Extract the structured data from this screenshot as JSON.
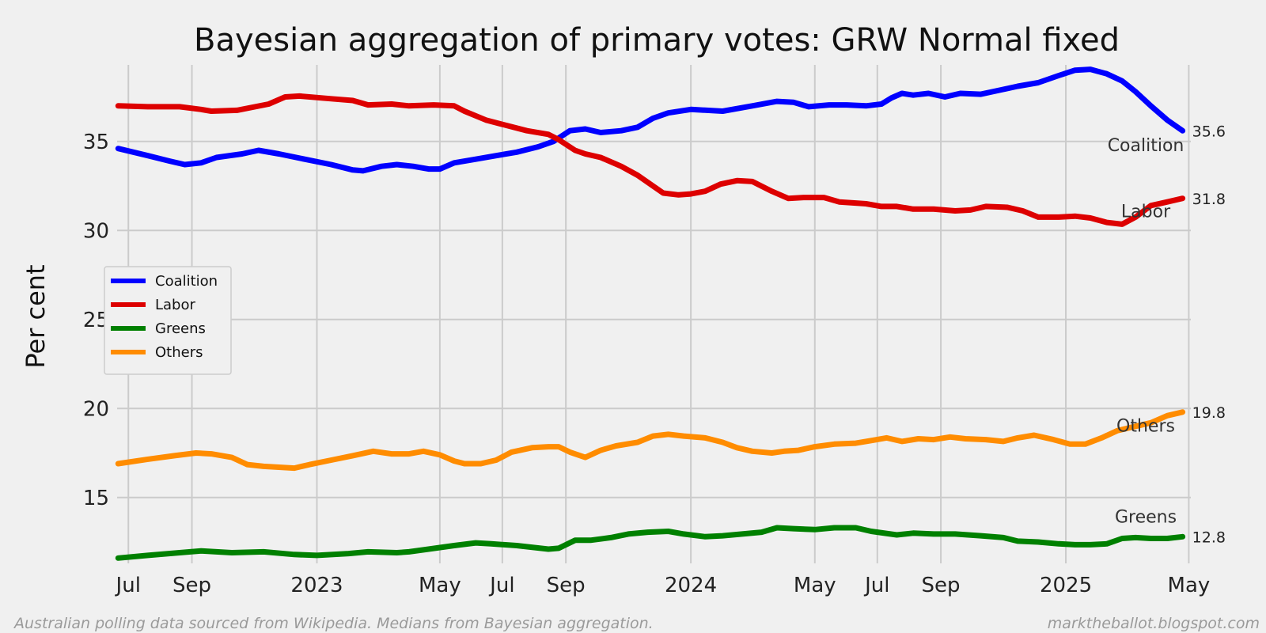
{
  "chart_data": {
    "type": "line",
    "title": "Bayesian aggregation of primary votes: GRW Normal fixed",
    "ylabel": "Per cent",
    "xlabel": "",
    "xlim": [
      "2022-06-20",
      "2025-05-03"
    ],
    "ylim": [
      11.3,
      39.3
    ],
    "x_ticks": [
      {
        "date": "2022-07-01",
        "label": "Jul"
      },
      {
        "date": "2022-09-01",
        "label": "Sep"
      },
      {
        "date": "2023-01-01",
        "label": "2023"
      },
      {
        "date": "2023-05-01",
        "label": "May"
      },
      {
        "date": "2023-07-01",
        "label": "Jul"
      },
      {
        "date": "2023-09-01",
        "label": "Sep"
      },
      {
        "date": "2024-01-01",
        "label": "2024"
      },
      {
        "date": "2024-05-01",
        "label": "May"
      },
      {
        "date": "2024-07-01",
        "label": "Jul"
      },
      {
        "date": "2024-09-01",
        "label": "Sep"
      },
      {
        "date": "2025-01-01",
        "label": "2025"
      },
      {
        "date": "2025-05-01",
        "label": "May"
      }
    ],
    "y_ticks": [
      15,
      20,
      25,
      30,
      35
    ],
    "grid": true,
    "legend_position": "center-left",
    "series": [
      {
        "name": "Coalition",
        "color": "#0000ff",
        "end_label": "35.6",
        "points": [
          [
            "2022-06-21",
            34.6
          ],
          [
            "2022-07-20",
            34.2
          ],
          [
            "2022-08-10",
            33.9
          ],
          [
            "2022-08-25",
            33.7
          ],
          [
            "2022-09-10",
            33.8
          ],
          [
            "2022-09-25",
            34.1
          ],
          [
            "2022-10-20",
            34.3
          ],
          [
            "2022-11-05",
            34.5
          ],
          [
            "2022-11-25",
            34.3
          ],
          [
            "2022-12-20",
            34.0
          ],
          [
            "2023-01-15",
            33.7
          ],
          [
            "2023-02-05",
            33.4
          ],
          [
            "2023-02-15",
            33.35
          ],
          [
            "2023-03-05",
            33.6
          ],
          [
            "2023-03-20",
            33.7
          ],
          [
            "2023-04-05",
            33.6
          ],
          [
            "2023-04-20",
            33.45
          ],
          [
            "2023-05-01",
            33.45
          ],
          [
            "2023-05-15",
            33.8
          ],
          [
            "2023-06-05",
            34.0
          ],
          [
            "2023-06-25",
            34.2
          ],
          [
            "2023-07-15",
            34.4
          ],
          [
            "2023-08-05",
            34.7
          ],
          [
            "2023-08-20",
            35.0
          ],
          [
            "2023-09-05",
            35.6
          ],
          [
            "2023-09-20",
            35.7
          ],
          [
            "2023-10-05",
            35.5
          ],
          [
            "2023-10-25",
            35.6
          ],
          [
            "2023-11-10",
            35.8
          ],
          [
            "2023-11-25",
            36.3
          ],
          [
            "2023-12-10",
            36.6
          ],
          [
            "2024-01-01",
            36.8
          ],
          [
            "2024-02-01",
            36.7
          ],
          [
            "2024-03-01",
            37.0
          ],
          [
            "2024-03-25",
            37.25
          ],
          [
            "2024-04-10",
            37.2
          ],
          [
            "2024-04-25",
            36.95
          ],
          [
            "2024-05-15",
            37.05
          ],
          [
            "2024-06-01",
            37.05
          ],
          [
            "2024-06-20",
            37.0
          ],
          [
            "2024-07-05",
            37.1
          ],
          [
            "2024-07-15",
            37.45
          ],
          [
            "2024-07-25",
            37.7
          ],
          [
            "2024-08-05",
            37.6
          ],
          [
            "2024-08-20",
            37.7
          ],
          [
            "2024-09-05",
            37.5
          ],
          [
            "2024-09-20",
            37.7
          ],
          [
            "2024-10-10",
            37.65
          ],
          [
            "2024-10-30",
            37.9
          ],
          [
            "2024-11-15",
            38.1
          ],
          [
            "2024-12-05",
            38.3
          ],
          [
            "2024-12-25",
            38.7
          ],
          [
            "2025-01-10",
            39.0
          ],
          [
            "2025-01-25",
            39.05
          ],
          [
            "2025-02-10",
            38.8
          ],
          [
            "2025-02-25",
            38.4
          ],
          [
            "2025-03-10",
            37.8
          ],
          [
            "2025-03-25",
            37.0
          ],
          [
            "2025-04-10",
            36.2
          ],
          [
            "2025-04-25",
            35.6
          ]
        ]
      },
      {
        "name": "Labor",
        "color": "#dd0000",
        "end_label": "31.8",
        "points": [
          [
            "2022-06-21",
            37.0
          ],
          [
            "2022-07-20",
            36.95
          ],
          [
            "2022-08-20",
            36.95
          ],
          [
            "2022-09-10",
            36.8
          ],
          [
            "2022-09-20",
            36.7
          ],
          [
            "2022-10-15",
            36.75
          ],
          [
            "2022-11-15",
            37.1
          ],
          [
            "2022-12-01",
            37.5
          ],
          [
            "2022-12-15",
            37.55
          ],
          [
            "2023-01-15",
            37.4
          ],
          [
            "2023-02-05",
            37.3
          ],
          [
            "2023-02-20",
            37.05
          ],
          [
            "2023-03-15",
            37.1
          ],
          [
            "2023-04-01",
            37.0
          ],
          [
            "2023-04-25",
            37.05
          ],
          [
            "2023-05-15",
            37.0
          ],
          [
            "2023-05-25",
            36.7
          ],
          [
            "2023-06-15",
            36.2
          ],
          [
            "2023-07-05",
            35.9
          ],
          [
            "2023-07-25",
            35.6
          ],
          [
            "2023-08-15",
            35.4
          ],
          [
            "2023-08-25",
            35.1
          ],
          [
            "2023-09-10",
            34.5
          ],
          [
            "2023-09-20",
            34.3
          ],
          [
            "2023-10-05",
            34.1
          ],
          [
            "2023-10-25",
            33.6
          ],
          [
            "2023-11-10",
            33.1
          ],
          [
            "2023-11-25",
            32.5
          ],
          [
            "2023-12-05",
            32.1
          ],
          [
            "2023-12-20",
            32.0
          ],
          [
            "2024-01-01",
            32.05
          ],
          [
            "2024-01-15",
            32.2
          ],
          [
            "2024-01-30",
            32.6
          ],
          [
            "2024-02-15",
            32.8
          ],
          [
            "2024-03-01",
            32.75
          ],
          [
            "2024-03-20",
            32.2
          ],
          [
            "2024-04-05",
            31.8
          ],
          [
            "2024-04-20",
            31.85
          ],
          [
            "2024-05-10",
            31.85
          ],
          [
            "2024-05-25",
            31.6
          ],
          [
            "2024-06-20",
            31.5
          ],
          [
            "2024-07-05",
            31.35
          ],
          [
            "2024-07-20",
            31.35
          ],
          [
            "2024-08-05",
            31.2
          ],
          [
            "2024-08-25",
            31.2
          ],
          [
            "2024-09-15",
            31.1
          ],
          [
            "2024-09-30",
            31.15
          ],
          [
            "2024-10-15",
            31.35
          ],
          [
            "2024-11-05",
            31.3
          ],
          [
            "2024-11-20",
            31.1
          ],
          [
            "2024-12-05",
            30.75
          ],
          [
            "2024-12-25",
            30.75
          ],
          [
            "2025-01-10",
            30.8
          ],
          [
            "2025-01-25",
            30.7
          ],
          [
            "2025-02-10",
            30.45
          ],
          [
            "2025-02-25",
            30.35
          ],
          [
            "2025-03-10",
            30.75
          ],
          [
            "2025-03-25",
            31.4
          ],
          [
            "2025-04-10",
            31.6
          ],
          [
            "2025-04-25",
            31.8
          ]
        ]
      },
      {
        "name": "Greens",
        "color": "#008000",
        "end_label": "12.8",
        "points": [
          [
            "2022-06-21",
            11.6
          ],
          [
            "2022-07-20",
            11.75
          ],
          [
            "2022-08-20",
            11.9
          ],
          [
            "2022-09-10",
            12.0
          ],
          [
            "2022-10-10",
            11.9
          ],
          [
            "2022-11-10",
            11.95
          ],
          [
            "2022-12-10",
            11.8
          ],
          [
            "2023-01-01",
            11.75
          ],
          [
            "2023-02-01",
            11.85
          ],
          [
            "2023-02-20",
            11.95
          ],
          [
            "2023-03-20",
            11.9
          ],
          [
            "2023-04-01",
            11.95
          ],
          [
            "2023-04-20",
            12.1
          ],
          [
            "2023-05-15",
            12.3
          ],
          [
            "2023-06-05",
            12.45
          ],
          [
            "2023-06-20",
            12.4
          ],
          [
            "2023-07-15",
            12.3
          ],
          [
            "2023-08-15",
            12.1
          ],
          [
            "2023-08-25",
            12.15
          ],
          [
            "2023-09-10",
            12.6
          ],
          [
            "2023-09-25",
            12.6
          ],
          [
            "2023-10-15",
            12.75
          ],
          [
            "2023-11-01",
            12.95
          ],
          [
            "2023-11-20",
            13.05
          ],
          [
            "2023-12-10",
            13.1
          ],
          [
            "2023-12-25",
            12.95
          ],
          [
            "2024-01-15",
            12.8
          ],
          [
            "2024-02-01",
            12.85
          ],
          [
            "2024-02-20",
            12.95
          ],
          [
            "2024-03-10",
            13.05
          ],
          [
            "2024-03-25",
            13.3
          ],
          [
            "2024-04-10",
            13.25
          ],
          [
            "2024-05-01",
            13.2
          ],
          [
            "2024-05-20",
            13.3
          ],
          [
            "2024-06-10",
            13.3
          ],
          [
            "2024-06-25",
            13.1
          ],
          [
            "2024-07-20",
            12.9
          ],
          [
            "2024-08-05",
            13.0
          ],
          [
            "2024-08-25",
            12.95
          ],
          [
            "2024-09-15",
            12.95
          ],
          [
            "2024-10-10",
            12.85
          ],
          [
            "2024-11-01",
            12.75
          ],
          [
            "2024-11-15",
            12.55
          ],
          [
            "2024-12-05",
            12.5
          ],
          [
            "2024-12-25",
            12.4
          ],
          [
            "2025-01-10",
            12.35
          ],
          [
            "2025-01-25",
            12.35
          ],
          [
            "2025-02-10",
            12.4
          ],
          [
            "2025-02-25",
            12.7
          ],
          [
            "2025-03-10",
            12.75
          ],
          [
            "2025-03-25",
            12.7
          ],
          [
            "2025-04-10",
            12.7
          ],
          [
            "2025-04-25",
            12.8
          ]
        ]
      },
      {
        "name": "Others",
        "color": "#ff8c00",
        "end_label": "19.8",
        "points": [
          [
            "2022-06-21",
            16.9
          ],
          [
            "2022-07-20",
            17.15
          ],
          [
            "2022-08-15",
            17.35
          ],
          [
            "2022-09-05",
            17.5
          ],
          [
            "2022-09-20",
            17.45
          ],
          [
            "2022-10-10",
            17.25
          ],
          [
            "2022-10-25",
            16.85
          ],
          [
            "2022-11-10",
            16.75
          ],
          [
            "2022-11-25",
            16.7
          ],
          [
            "2022-12-10",
            16.65
          ],
          [
            "2022-12-25",
            16.85
          ],
          [
            "2023-01-15",
            17.1
          ],
          [
            "2023-02-05",
            17.35
          ],
          [
            "2023-02-25",
            17.6
          ],
          [
            "2023-03-15",
            17.45
          ],
          [
            "2023-04-01",
            17.45
          ],
          [
            "2023-04-15",
            17.6
          ],
          [
            "2023-05-01",
            17.4
          ],
          [
            "2023-05-15",
            17.05
          ],
          [
            "2023-05-25",
            16.9
          ],
          [
            "2023-06-10",
            16.9
          ],
          [
            "2023-06-25",
            17.1
          ],
          [
            "2023-07-10",
            17.55
          ],
          [
            "2023-07-30",
            17.8
          ],
          [
            "2023-08-15",
            17.85
          ],
          [
            "2023-08-25",
            17.85
          ],
          [
            "2023-09-05",
            17.55
          ],
          [
            "2023-09-20",
            17.25
          ],
          [
            "2023-10-05",
            17.65
          ],
          [
            "2023-10-20",
            17.9
          ],
          [
            "2023-11-10",
            18.1
          ],
          [
            "2023-11-25",
            18.45
          ],
          [
            "2023-12-10",
            18.55
          ],
          [
            "2023-12-25",
            18.45
          ],
          [
            "2024-01-15",
            18.35
          ],
          [
            "2024-02-01",
            18.1
          ],
          [
            "2024-02-15",
            17.8
          ],
          [
            "2024-03-01",
            17.6
          ],
          [
            "2024-03-20",
            17.5
          ],
          [
            "2024-04-01",
            17.6
          ],
          [
            "2024-04-15",
            17.65
          ],
          [
            "2024-05-01",
            17.85
          ],
          [
            "2024-05-20",
            18.0
          ],
          [
            "2024-06-10",
            18.05
          ],
          [
            "2024-06-25",
            18.2
          ],
          [
            "2024-07-10",
            18.35
          ],
          [
            "2024-07-25",
            18.15
          ],
          [
            "2024-08-10",
            18.3
          ],
          [
            "2024-08-25",
            18.25
          ],
          [
            "2024-09-10",
            18.4
          ],
          [
            "2024-09-25",
            18.3
          ],
          [
            "2024-10-15",
            18.25
          ],
          [
            "2024-11-01",
            18.15
          ],
          [
            "2024-11-15",
            18.35
          ],
          [
            "2024-12-01",
            18.5
          ],
          [
            "2024-12-20",
            18.25
          ],
          [
            "2025-01-05",
            18.0
          ],
          [
            "2025-01-20",
            18.0
          ],
          [
            "2025-02-05",
            18.35
          ],
          [
            "2025-02-20",
            18.75
          ],
          [
            "2025-03-10",
            19.0
          ],
          [
            "2025-03-25",
            19.2
          ],
          [
            "2025-04-10",
            19.6
          ],
          [
            "2025-04-25",
            19.8
          ]
        ]
      }
    ],
    "series_labels": [
      {
        "text": "Coalition",
        "date": "2025-03-20",
        "value": 34.45
      },
      {
        "text": "Labor",
        "date": "2025-03-20",
        "value": 30.75
      },
      {
        "text": "Others",
        "date": "2025-03-20",
        "value": 18.7
      },
      {
        "text": "Greens",
        "date": "2025-03-20",
        "value": 13.6
      }
    ]
  },
  "footer": {
    "source": "Australian polling data sourced from Wikipedia. Medians from Bayesian aggregation.",
    "site": "marktheballot.blogspot.com"
  }
}
